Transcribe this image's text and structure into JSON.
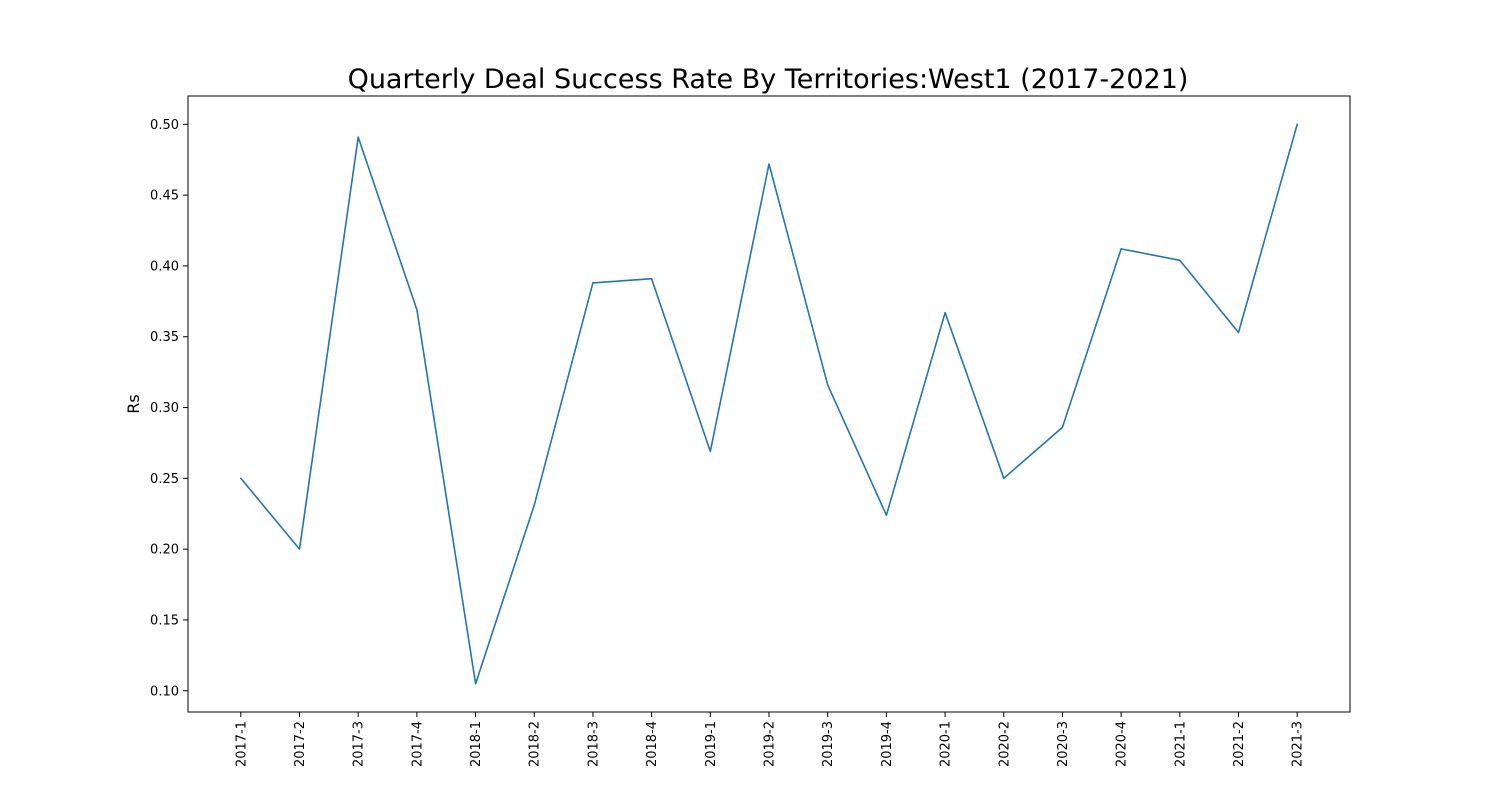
{
  "chart_data": {
    "type": "line",
    "title": "Quarterly Deal Success Rate By Territories:West1 (2017-2021)",
    "xlabel": "",
    "ylabel": "Rs",
    "categories": [
      "2017-1",
      "2017-2",
      "2017-3",
      "2017-4",
      "2018-1",
      "2018-2",
      "2018-3",
      "2018-4",
      "2019-1",
      "2019-2",
      "2019-3",
      "2019-4",
      "2020-1",
      "2020-2",
      "2020-3",
      "2020-4",
      "2021-1",
      "2021-2",
      "2021-3"
    ],
    "series": [
      {
        "values": [
          0.25,
          0.2,
          0.491,
          0.369,
          0.105,
          0.231,
          0.388,
          0.391,
          0.269,
          0.472,
          0.316,
          0.224,
          0.367,
          0.25,
          0.286,
          0.412,
          0.404,
          0.353,
          0.5
        ],
        "color": "#1f77b4"
      }
    ],
    "ylim": [
      0.085,
      0.52
    ],
    "yticks": [
      0.1,
      0.15,
      0.2,
      0.25,
      0.3,
      0.35,
      0.4,
      0.45,
      0.5
    ],
    "ytick_labels": [
      "0.10",
      "0.15",
      "0.20",
      "0.25",
      "0.30",
      "0.35",
      "0.40",
      "0.45",
      "0.50"
    ],
    "grid": false,
    "legend": "none"
  }
}
